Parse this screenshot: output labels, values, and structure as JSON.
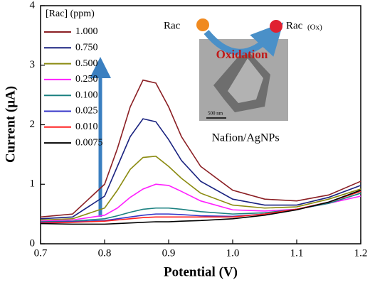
{
  "chart_data": {
    "type": "line",
    "x_label": "Potential (V)",
    "y_label": "Current (μA)",
    "xlim": [
      0.7,
      1.2
    ],
    "ylim": [
      0,
      4
    ],
    "xticks": [
      0.7,
      0.8,
      0.9,
      {
        "value": 1,
        "label": "1.0"
      },
      1.1,
      1.2
    ],
    "yticks": [
      0,
      1,
      2,
      3,
      4
    ],
    "legend_title": "[Rac] (ppm)",
    "legend": "upper left",
    "x": [
      0.7,
      0.75,
      0.8,
      0.82,
      0.84,
      0.86,
      0.88,
      0.9,
      0.92,
      0.95,
      1.0,
      1.05,
      1.1,
      1.15,
      1.2
    ],
    "series": [
      {
        "name": "1.000",
        "color": "#8b1f24",
        "values": [
          0.45,
          0.5,
          1.0,
          1.6,
          2.3,
          2.75,
          2.7,
          2.3,
          1.8,
          1.3,
          0.9,
          0.75,
          0.72,
          0.82,
          1.05
        ]
      },
      {
        "name": "0.750",
        "color": "#1a2380",
        "values": [
          0.42,
          0.45,
          0.8,
          1.3,
          1.8,
          2.1,
          2.05,
          1.75,
          1.4,
          1.05,
          0.75,
          0.65,
          0.65,
          0.78,
          0.98
        ]
      },
      {
        "name": "0.500",
        "color": "#8b8b10",
        "values": [
          0.4,
          0.42,
          0.6,
          0.9,
          1.25,
          1.45,
          1.47,
          1.3,
          1.1,
          0.85,
          0.65,
          0.6,
          0.62,
          0.75,
          0.92
        ]
      },
      {
        "name": "0.250",
        "color": "#ff20ff",
        "values": [
          0.38,
          0.4,
          0.48,
          0.6,
          0.78,
          0.92,
          1.0,
          0.98,
          0.88,
          0.72,
          0.57,
          0.55,
          0.58,
          0.68,
          0.8
        ]
      },
      {
        "name": "0.100",
        "color": "#1a8080",
        "values": [
          0.37,
          0.38,
          0.42,
          0.47,
          0.53,
          0.58,
          0.6,
          0.6,
          0.58,
          0.54,
          0.5,
          0.52,
          0.58,
          0.68,
          0.85
        ]
      },
      {
        "name": "0.025",
        "color": "#3535c8",
        "values": [
          0.36,
          0.37,
          0.39,
          0.42,
          0.45,
          0.48,
          0.5,
          0.5,
          0.49,
          0.47,
          0.46,
          0.5,
          0.58,
          0.7,
          0.9
        ]
      },
      {
        "name": "0.010",
        "color": "#ff2020",
        "values": [
          0.35,
          0.36,
          0.38,
          0.4,
          0.42,
          0.44,
          0.45,
          0.45,
          0.45,
          0.45,
          0.45,
          0.5,
          0.58,
          0.7,
          0.88
        ]
      },
      {
        "name": "0.0075",
        "color": "#000000",
        "values": [
          0.34,
          0.33,
          0.33,
          0.34,
          0.35,
          0.36,
          0.37,
          0.37,
          0.38,
          0.39,
          0.42,
          0.48,
          0.57,
          0.7,
          0.9
        ]
      }
    ],
    "annotations": {
      "reactant": "Rac",
      "product": "Rac",
      "product_suffix": "(Ox)",
      "reaction": "Oxidation",
      "inset_caption": "Nafion/AgNPs",
      "scale_bar": "500 nm"
    }
  }
}
